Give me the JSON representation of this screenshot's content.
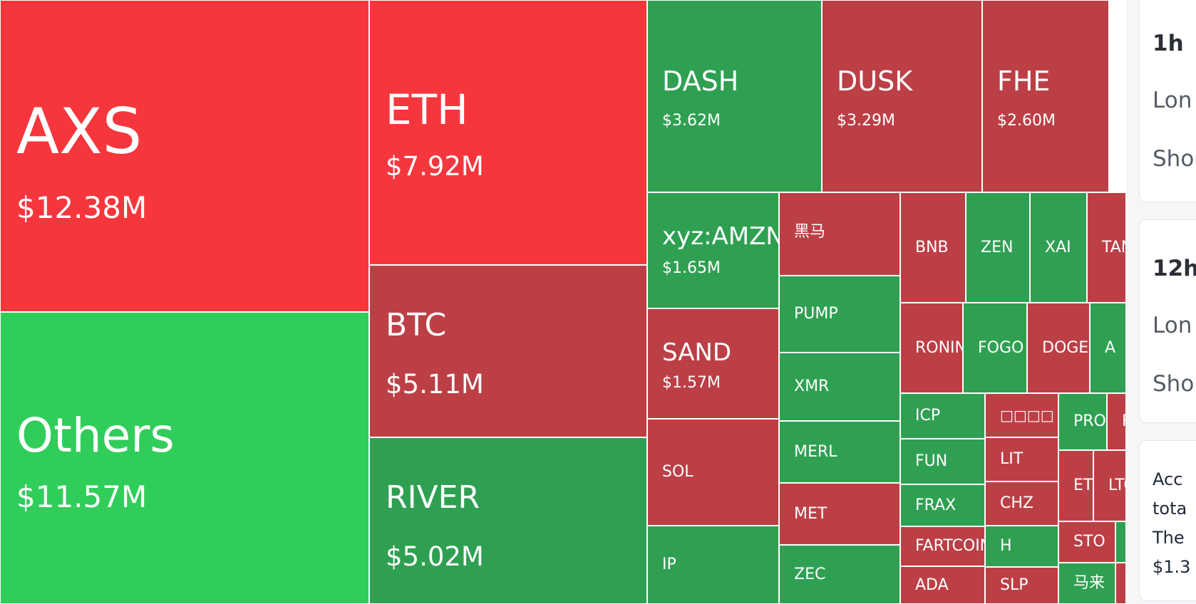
{
  "colors": {
    "up_bright": "#30cd5a",
    "down_bright": "#f6363d",
    "up": "#2fa052",
    "down": "#bc3f46"
  },
  "treemap": {
    "tiles": [
      {
        "name": "AXS",
        "value": "$12.38M",
        "change": "down-bright"
      },
      {
        "name": "Others",
        "value": "$11.57M",
        "change": "up-bright"
      },
      {
        "name": "ETH",
        "value": "$7.92M",
        "change": "down-bright"
      },
      {
        "name": "BTC",
        "value": "$5.11M",
        "change": "down"
      },
      {
        "name": "RIVER",
        "value": "$5.02M",
        "change": "up"
      },
      {
        "name": "DASH",
        "value": "$3.62M",
        "change": "up"
      },
      {
        "name": "DUSK",
        "value": "$3.29M",
        "change": "down"
      },
      {
        "name": "FHE",
        "value": "$2.60M",
        "change": "down"
      },
      {
        "name": "xyz:AMZN",
        "value": "$1.65M",
        "change": "up"
      },
      {
        "name": "SAND",
        "value": "$1.57M",
        "change": "down"
      },
      {
        "name": "SOL",
        "change": "down"
      },
      {
        "name": "IP",
        "change": "up"
      },
      {
        "name": "黑马",
        "change": "down"
      },
      {
        "name": "PUMP",
        "change": "up"
      },
      {
        "name": "XMR",
        "change": "up"
      },
      {
        "name": "MERL",
        "change": "up"
      },
      {
        "name": "MET",
        "change": "down"
      },
      {
        "name": "ZEC",
        "change": "up"
      },
      {
        "name": "BNB",
        "change": "down"
      },
      {
        "name": "ZEN",
        "change": "up"
      },
      {
        "name": "XAI",
        "change": "up"
      },
      {
        "name": "TAN",
        "change": "down"
      },
      {
        "name": "RONIN",
        "change": "down"
      },
      {
        "name": "FOGO",
        "change": "up"
      },
      {
        "name": "DOGE",
        "change": "down"
      },
      {
        "name": "A",
        "change": "up"
      },
      {
        "name": "ICP",
        "change": "up"
      },
      {
        "name": "FUN",
        "change": "up"
      },
      {
        "name": "FRAX",
        "change": "up"
      },
      {
        "name": "FARTCOIN",
        "change": "down"
      },
      {
        "name": "ADA",
        "change": "down"
      },
      {
        "name": "□□□□",
        "change": "down"
      },
      {
        "name": "LIT",
        "change": "down"
      },
      {
        "name": "CHZ",
        "change": "down"
      },
      {
        "name": "H",
        "change": "up"
      },
      {
        "name": "SLP",
        "change": "down"
      },
      {
        "name": "PRO",
        "change": "up"
      },
      {
        "name": "F",
        "change": "down"
      },
      {
        "name": "ET",
        "change": "down"
      },
      {
        "name": "LTC",
        "change": "down"
      },
      {
        "name": "STO",
        "change": "down"
      },
      {
        "name": "马来",
        "change": "up"
      },
      {
        "name": "",
        "change": "up"
      },
      {
        "name": "",
        "change": "down"
      },
      {
        "name": "",
        "change": "down"
      }
    ]
  },
  "panel": {
    "card1": {
      "title": "1h",
      "long_label": "Lon",
      "short_label": "Sho"
    },
    "card2": {
      "title": "12h",
      "long_label": "Lon",
      "short_label": "Sho"
    },
    "summary": {
      "line1": "Acc",
      "line2": "tota",
      "line3": "The",
      "line4": "$1.3"
    }
  }
}
